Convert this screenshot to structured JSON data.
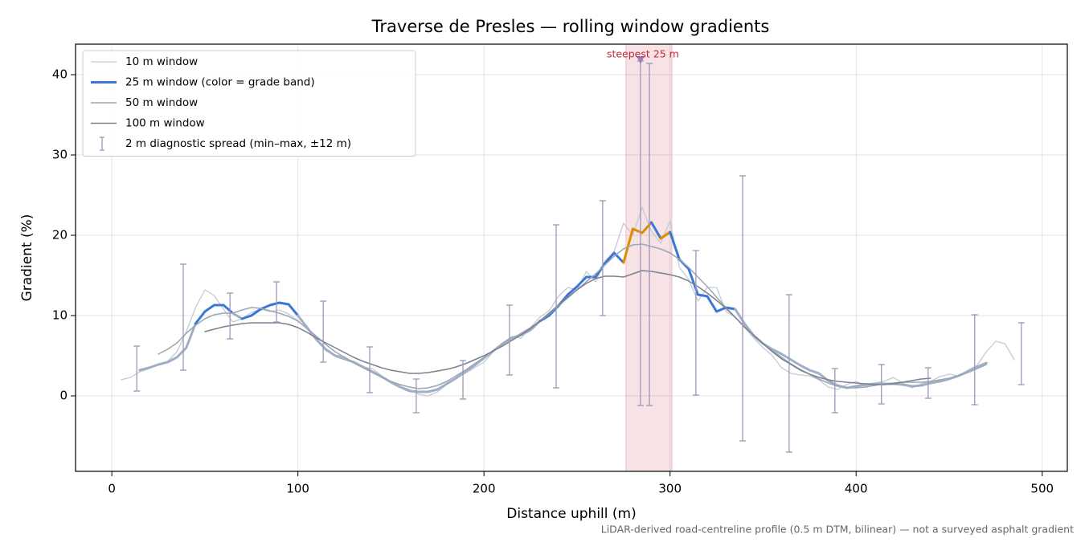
{
  "chart_data": {
    "type": "line",
    "title": "Traverse de Presles — rolling window gradients",
    "xlabel": "Distance uphill (m)",
    "ylabel": "Gradient (%)",
    "footnote": "LiDAR-derived road-centreline profile (0.5 m DTM, bilinear) — not a surveyed asphalt gradient",
    "xlim": [
      -19.5,
      513.5
    ],
    "ylim": [
      -9.4,
      43.8
    ],
    "xticks": [
      0,
      100,
      200,
      300,
      400,
      500
    ],
    "yticks": [
      0,
      10,
      20,
      30,
      40
    ],
    "grid": true,
    "legend": "upper left",
    "series": [
      {
        "name": "10 m window",
        "color": "#c5cad3",
        "width": 1.3,
        "x": [
          5,
          10,
          15,
          20,
          25,
          30,
          35,
          40,
          45,
          50,
          55,
          60,
          65,
          70,
          75,
          80,
          85,
          90,
          95,
          100,
          105,
          110,
          115,
          120,
          125,
          130,
          135,
          140,
          145,
          150,
          155,
          160,
          165,
          170,
          175,
          180,
          185,
          190,
          195,
          200,
          205,
          210,
          215,
          220,
          225,
          230,
          235,
          240,
          245,
          250,
          255,
          260,
          265,
          270,
          275,
          280,
          285,
          290,
          295,
          300,
          305,
          310,
          315,
          320,
          325,
          330,
          335,
          340,
          345,
          350,
          355,
          360,
          365,
          370,
          375,
          380,
          385,
          390,
          395,
          400,
          405,
          410,
          415,
          420,
          425,
          430,
          435,
          440,
          445,
          450,
          455,
          460,
          465,
          470,
          475,
          480,
          485
        ],
        "values": [
          2,
          2.3,
          3,
          3.4,
          3.9,
          4.3,
          5.5,
          8,
          11,
          13.2,
          12.5,
          10.8,
          9.2,
          9.6,
          10.4,
          10.8,
          10.5,
          10.7,
          10.2,
          9.4,
          8.3,
          7,
          5.6,
          5.1,
          4.9,
          4.1,
          3.6,
          3.4,
          2.5,
          1.6,
          1.2,
          0.8,
          0.2,
          0,
          0.5,
          1.4,
          2.3,
          2.8,
          3.5,
          4.2,
          5.5,
          6.6,
          7.4,
          7.2,
          8.5,
          9.8,
          10.6,
          12.4,
          13.5,
          13.2,
          15.5,
          14.2,
          16.8,
          18,
          21.5,
          20,
          23.5,
          20.5,
          19,
          21.8,
          16,
          14.5,
          11.8,
          13.5,
          13.5,
          10.5,
          9.8,
          8.5,
          7.2,
          6,
          5,
          3.5,
          2.8,
          2.6,
          2.5,
          2,
          1.1,
          0.8,
          1.4,
          1.8,
          1.2,
          1.6,
          1.8,
          2.3,
          1.6,
          1.0,
          1.5,
          1.8,
          2.4,
          2.7,
          2.5,
          3.2,
          3.8,
          5.5,
          6.8,
          6.5,
          4.5
        ]
      },
      {
        "name": "25 m window (color = grade band)",
        "color": "#3a78d6",
        "width": 3,
        "grade_bands": [
          {
            "min": 0,
            "color": "#9fb0c6"
          },
          {
            "min": 10,
            "color": "#3a78d6"
          },
          {
            "min": 20,
            "color": "#e08c00"
          }
        ],
        "x": [
          15,
          20,
          25,
          30,
          35,
          40,
          45,
          50,
          55,
          60,
          65,
          70,
          75,
          80,
          85,
          90,
          95,
          100,
          105,
          110,
          115,
          120,
          125,
          130,
          135,
          140,
          145,
          150,
          155,
          160,
          165,
          170,
          175,
          180,
          185,
          190,
          195,
          200,
          205,
          210,
          215,
          220,
          225,
          230,
          235,
          240,
          245,
          250,
          255,
          260,
          265,
          270,
          275,
          280,
          285,
          290,
          295,
          300,
          305,
          310,
          315,
          320,
          325,
          330,
          335,
          340,
          345,
          350,
          355,
          360,
          365,
          370,
          375,
          380,
          385,
          390,
          395,
          400,
          405,
          410,
          415,
          420,
          425,
          430,
          435,
          440,
          445,
          450,
          455,
          460,
          465,
          470
        ],
        "values": [
          3.2,
          3.5,
          3.9,
          4.2,
          4.8,
          6,
          9,
          10.5,
          11.3,
          11.3,
          10.3,
          9.6,
          10,
          10.8,
          11.3,
          11.6,
          11.4,
          10,
          8.5,
          7,
          5.8,
          5,
          4.6,
          4.2,
          3.6,
          3,
          2.4,
          1.7,
          1.1,
          0.6,
          0.5,
          0.5,
          0.8,
          1.5,
          2.2,
          3,
          3.8,
          4.7,
          5.6,
          6.5,
          7.2,
          7.6,
          8.2,
          9.3,
          10,
          11.2,
          12.6,
          13.6,
          14.8,
          14.8,
          16.5,
          17.8,
          16.6,
          20.8,
          20.3,
          21.6,
          19.6,
          20.4,
          17,
          15.8,
          12.6,
          12.4,
          10.5,
          11,
          10.8,
          9,
          7.5,
          6.5,
          5.8,
          5.2,
          4.5,
          3.8,
          3.2,
          2.8,
          1.9,
          1.3,
          1.0,
          1.2,
          1.4,
          1.5,
          1.5,
          1.5,
          1.4,
          1.2,
          1.3,
          1.6,
          1.8,
          2.1,
          2.5,
          3,
          3.6,
          4.1
        ]
      },
      {
        "name": "50 m window",
        "color": "#9ba6b6",
        "width": 1.5,
        "x": [
          25,
          30,
          35,
          40,
          45,
          50,
          55,
          60,
          65,
          70,
          75,
          80,
          85,
          90,
          95,
          100,
          105,
          110,
          115,
          120,
          125,
          130,
          135,
          140,
          145,
          150,
          155,
          160,
          165,
          170,
          175,
          180,
          185,
          190,
          195,
          200,
          205,
          210,
          215,
          220,
          225,
          230,
          235,
          240,
          245,
          250,
          255,
          260,
          265,
          270,
          275,
          280,
          285,
          290,
          295,
          300,
          305,
          310,
          315,
          320,
          325,
          330,
          335,
          340,
          345,
          350,
          355,
          360,
          365,
          370,
          375,
          380,
          385,
          390,
          395,
          400,
          405,
          410,
          415,
          420,
          425,
          430,
          435,
          440,
          445,
          450,
          455,
          460,
          465,
          470
        ],
        "values": [
          5.2,
          5.8,
          6.6,
          7.8,
          8.8,
          9.6,
          10.1,
          10.3,
          10.3,
          10.7,
          11,
          10.9,
          10.6,
          10.3,
          9.9,
          9.3,
          8.4,
          7.4,
          6.4,
          5.5,
          4.8,
          4.1,
          3.5,
          2.9,
          2.3,
          1.8,
          1.4,
          1.1,
          0.9,
          1,
          1.3,
          1.8,
          2.5,
          3.2,
          4,
          4.8,
          5.6,
          6.4,
          7.1,
          7.8,
          8.5,
          9.3,
          10.2,
          11.2,
          12.2,
          13.2,
          14.2,
          15.2,
          16.3,
          17.4,
          18.3,
          18.8,
          18.9,
          18.6,
          18.3,
          17.8,
          17,
          16,
          14.8,
          13.6,
          12.3,
          11,
          9.8,
          8.6,
          7.5,
          6.5,
          5.6,
          4.8,
          4,
          3.3,
          2.7,
          2.1,
          1.6,
          1.2,
          1,
          1,
          1.1,
          1.3,
          1.5,
          1.6,
          1.7,
          1.7,
          1.7,
          1.8,
          2,
          2.2,
          2.5,
          2.9,
          3.4,
          3.9
        ]
      },
      {
        "name": "100 m window",
        "color": "#7b8190",
        "width": 1.5,
        "x": [
          50,
          55,
          60,
          65,
          70,
          75,
          80,
          85,
          90,
          95,
          100,
          105,
          110,
          115,
          120,
          125,
          130,
          135,
          140,
          145,
          150,
          155,
          160,
          165,
          170,
          175,
          180,
          185,
          190,
          195,
          200,
          205,
          210,
          215,
          220,
          225,
          230,
          235,
          240,
          245,
          250,
          255,
          260,
          265,
          270,
          275,
          280,
          285,
          290,
          295,
          300,
          305,
          310,
          315,
          320,
          325,
          330,
          335,
          340,
          345,
          350,
          355,
          360,
          365,
          370,
          375,
          380,
          385,
          390,
          395,
          400,
          405,
          410,
          415,
          420,
          425,
          430,
          435,
          440
        ],
        "values": [
          8,
          8.3,
          8.6,
          8.8,
          9,
          9.1,
          9.1,
          9.1,
          9.1,
          8.9,
          8.5,
          7.9,
          7.2,
          6.6,
          6,
          5.4,
          4.8,
          4.3,
          3.9,
          3.5,
          3.2,
          3,
          2.8,
          2.8,
          2.9,
          3.1,
          3.3,
          3.6,
          4,
          4.5,
          5,
          5.6,
          6.2,
          6.9,
          7.6,
          8.4,
          9.3,
          10.3,
          11.3,
          12.3,
          13.2,
          14,
          14.6,
          14.9,
          14.9,
          14.8,
          15.2,
          15.6,
          15.5,
          15.3,
          15.1,
          14.8,
          14.3,
          13.6,
          12.8,
          11.9,
          10.9,
          9.8,
          8.6,
          7.5,
          6.5,
          5.5,
          4.6,
          3.9,
          3.2,
          2.7,
          2.3,
          2,
          1.8,
          1.7,
          1.6,
          1.5,
          1.4,
          1.4,
          1.5,
          1.7,
          1.9,
          2.1,
          2.2
        ]
      }
    ],
    "errorbars": {
      "name": "2 m diagnostic spread (min–max, ±12 m)",
      "color": "#9c98b8",
      "x": [
        13.4,
        38.4,
        63.5,
        88.5,
        113.6,
        138.6,
        163.6,
        188.7,
        213.7,
        238.8,
        263.8,
        284.1,
        288.9,
        313.9,
        339,
        364,
        388.6,
        413.6,
        438.7,
        463.7,
        488.8
      ],
      "low": [
        0.6,
        3.2,
        7.1,
        9.2,
        4.2,
        0.4,
        -2.1,
        -0.4,
        2.6,
        1.0,
        10.0,
        -1.2,
        -1.2,
        0.1,
        -5.6,
        -7.0,
        -2.1,
        -1.0,
        -0.3,
        -1.1,
        1.4
      ],
      "high": [
        6.2,
        16.4,
        12.8,
        14.2,
        11.8,
        6.1,
        2.1,
        4.4,
        11.3,
        21.3,
        24.3,
        41.7,
        41.4,
        18.1,
        27.4,
        12.6,
        3.4,
        3.9,
        3.5,
        10.1,
        9.1
      ]
    },
    "annotation": {
      "text": "steepest 25 m",
      "color": "#c0283c",
      "x": 284.1,
      "y": 41.7,
      "span": [
        276.3,
        301
      ]
    }
  }
}
